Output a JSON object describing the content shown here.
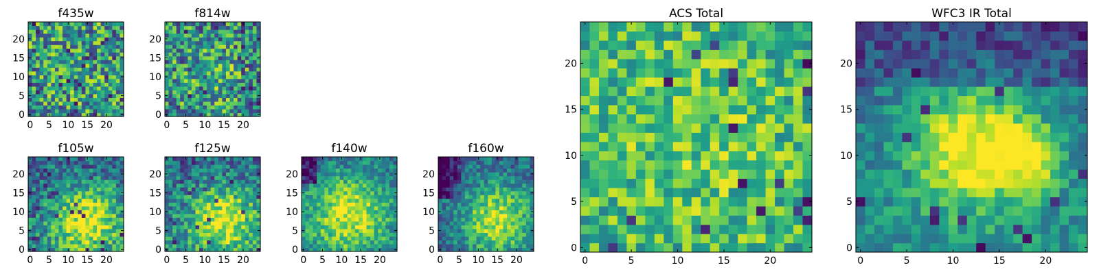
{
  "chart_data": [
    {
      "type": "heatmap",
      "title": "f435w",
      "x_ticks": [
        0,
        5,
        10,
        15,
        20
      ],
      "y_ticks": [
        0,
        5,
        10,
        15,
        20
      ],
      "xlim": [
        -0.5,
        24.5
      ],
      "ylim": [
        -0.5,
        24.5
      ],
      "grid": false,
      "colormap": "viridis",
      "pattern": "noise",
      "grid_size": 25,
      "seed": 11
    },
    {
      "type": "heatmap",
      "title": "f814w",
      "x_ticks": [
        0,
        5,
        10,
        15,
        20
      ],
      "y_ticks": [
        0,
        5,
        10,
        15,
        20
      ],
      "xlim": [
        -0.5,
        24.5
      ],
      "ylim": [
        -0.5,
        24.5
      ],
      "grid": false,
      "colormap": "viridis",
      "pattern": "noise-bright-center",
      "grid_size": 25,
      "seed": 23
    },
    {
      "type": "heatmap",
      "title": "f105w",
      "x_ticks": [
        0,
        5,
        10,
        15,
        20
      ],
      "y_ticks": [
        0,
        5,
        10,
        15,
        20
      ],
      "xlim": [
        -0.5,
        24.5
      ],
      "ylim": [
        -0.5,
        24.5
      ],
      "grid": false,
      "colormap": "viridis",
      "pattern": "source-lower-right",
      "grid_size": 25,
      "seed": 37
    },
    {
      "type": "heatmap",
      "title": "f125w",
      "x_ticks": [
        0,
        5,
        10,
        15,
        20
      ],
      "y_ticks": [
        0,
        5,
        10,
        15,
        20
      ],
      "xlim": [
        -0.5,
        24.5
      ],
      "ylim": [
        -0.5,
        24.5
      ],
      "grid": false,
      "colormap": "viridis",
      "pattern": "source-lower-right",
      "grid_size": 25,
      "seed": 41
    },
    {
      "type": "heatmap",
      "title": "f140w",
      "x_ticks": [
        0,
        5,
        10,
        15,
        20
      ],
      "y_ticks": [
        0,
        5,
        10,
        15,
        20
      ],
      "xlim": [
        -0.5,
        24.5
      ],
      "ylim": [
        -0.5,
        24.5
      ],
      "grid": false,
      "colormap": "viridis",
      "pattern": "source-center",
      "grid_size": 25,
      "seed": 53
    },
    {
      "type": "heatmap",
      "title": "f160w",
      "x_ticks": [
        0,
        5,
        10,
        15,
        20
      ],
      "y_ticks": [
        0,
        5,
        10,
        15,
        20
      ],
      "xlim": [
        -0.5,
        24.5
      ],
      "ylim": [
        -0.5,
        24.5
      ],
      "grid": false,
      "colormap": "viridis",
      "pattern": "source-center-dark-upper-left",
      "grid_size": 25,
      "seed": 67
    },
    {
      "type": "heatmap",
      "title": "ACS Total",
      "x_ticks": [
        0,
        5,
        10,
        15,
        20
      ],
      "y_ticks": [
        0,
        5,
        10,
        15,
        20
      ],
      "xlim": [
        -0.5,
        24.5
      ],
      "ylim": [
        -0.5,
        24.5
      ],
      "grid": false,
      "colormap": "viridis",
      "pattern": "noise-bright",
      "grid_size": 25,
      "seed": 79
    },
    {
      "type": "heatmap",
      "title": "WFC3 IR Total",
      "x_ticks": [
        0,
        5,
        10,
        15,
        20
      ],
      "y_ticks": [
        0,
        5,
        10,
        15,
        20
      ],
      "xlim": [
        -0.5,
        24.5
      ],
      "ylim": [
        -0.5,
        24.5
      ],
      "grid": false,
      "colormap": "viridis",
      "pattern": "source-center-dark-top",
      "grid_size": 25,
      "seed": 97
    }
  ]
}
